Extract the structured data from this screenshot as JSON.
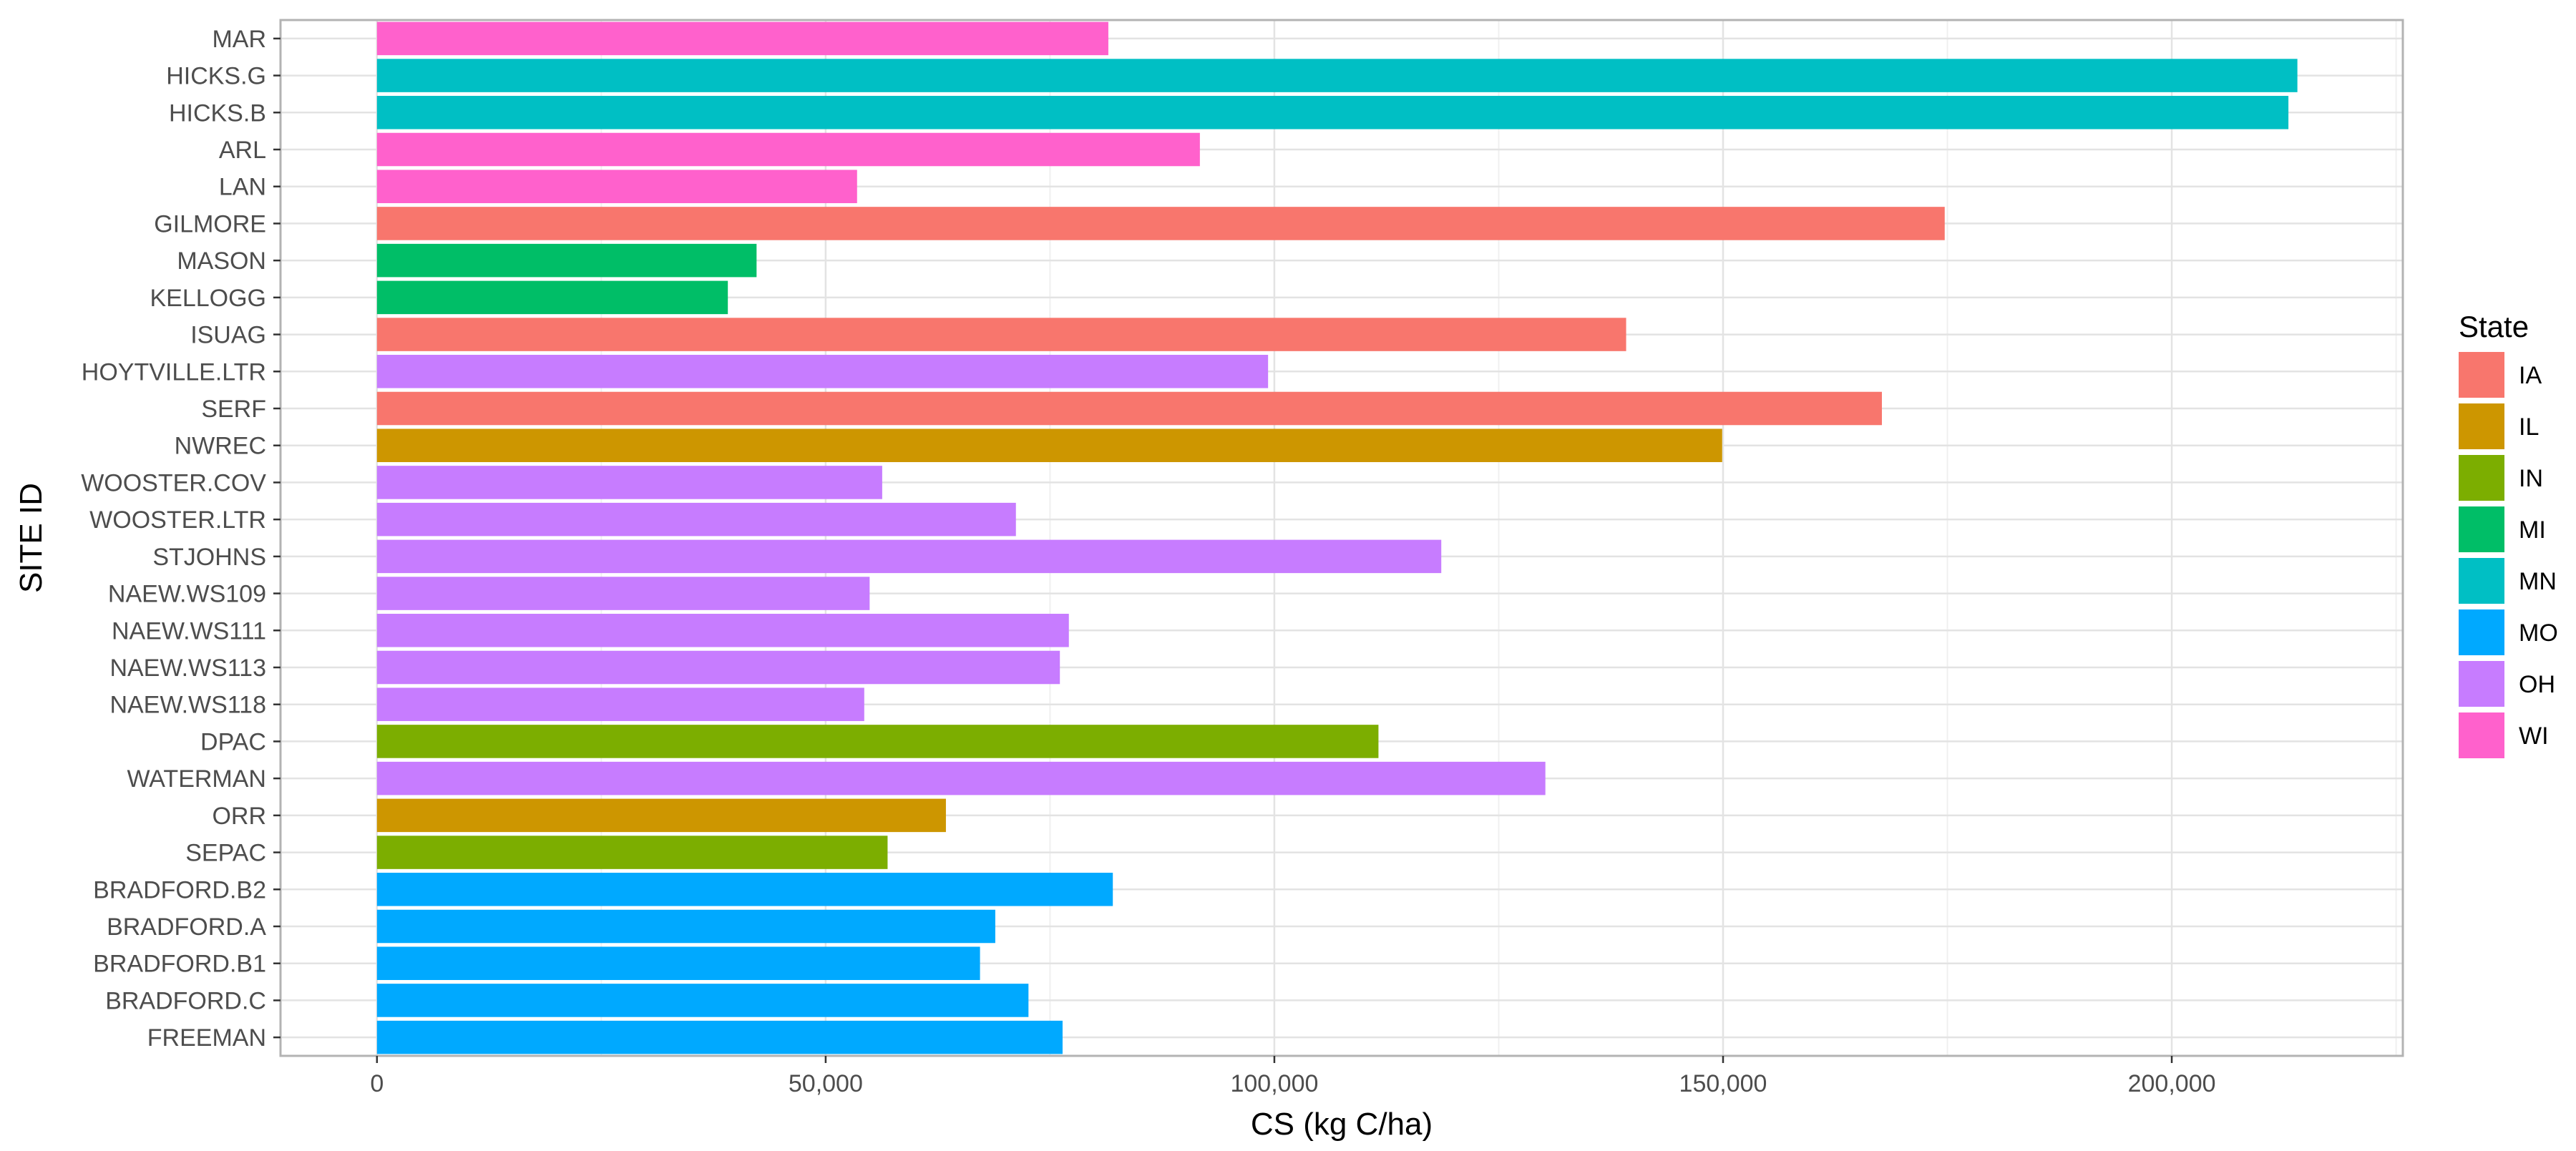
{
  "chart_data": {
    "type": "bar",
    "orientation": "horizontal",
    "xlabel": "CS (kg C/ha)",
    "ylabel": "SITE ID",
    "xlim": [
      -10750,
      225750
    ],
    "x_ticks": [
      0,
      50000,
      100000,
      150000,
      200000
    ],
    "x_tick_labels": [
      "0",
      "50,000",
      "100,000",
      "150,000",
      "200,000"
    ],
    "grid": true,
    "legend": {
      "title": "State",
      "placement": "right",
      "entries": [
        {
          "label": "IA",
          "color": "#F8766D"
        },
        {
          "label": "IL",
          "color": "#CD9600"
        },
        {
          "label": "IN",
          "color": "#7CAE00"
        },
        {
          "label": "MI",
          "color": "#00BE67"
        },
        {
          "label": "MN",
          "color": "#00BFC4"
        },
        {
          "label": "MO",
          "color": "#00A9FF"
        },
        {
          "label": "OH",
          "color": "#C77CFF"
        },
        {
          "label": "WI",
          "color": "#FF61CC"
        }
      ]
    },
    "bars": [
      {
        "site": "MAR",
        "state": "WI",
        "value": 81500
      },
      {
        "site": "HICKS.G",
        "state": "MN",
        "value": 214000
      },
      {
        "site": "HICKS.B",
        "state": "MN",
        "value": 213000
      },
      {
        "site": "ARL",
        "state": "WI",
        "value": 91700
      },
      {
        "site": "LAN",
        "state": "WI",
        "value": 53500
      },
      {
        "site": "GILMORE",
        "state": "IA",
        "value": 174700
      },
      {
        "site": "MASON",
        "state": "MI",
        "value": 42300
      },
      {
        "site": "KELLOGG",
        "state": "MI",
        "value": 39100
      },
      {
        "site": "ISUAG",
        "state": "IA",
        "value": 139200
      },
      {
        "site": "HOYTVILLE.LTR",
        "state": "OH",
        "value": 99300
      },
      {
        "site": "SERF",
        "state": "IA",
        "value": 167700
      },
      {
        "site": "NWREC",
        "state": "IL",
        "value": 149900
      },
      {
        "site": "WOOSTER.COV",
        "state": "OH",
        "value": 56300
      },
      {
        "site": "WOOSTER.LTR",
        "state": "OH",
        "value": 71200
      },
      {
        "site": "STJOHNS",
        "state": "OH",
        "value": 118600
      },
      {
        "site": "NAEW.WS109",
        "state": "OH",
        "value": 54900
      },
      {
        "site": "NAEW.WS111",
        "state": "OH",
        "value": 77100
      },
      {
        "site": "NAEW.WS113",
        "state": "OH",
        "value": 76100
      },
      {
        "site": "NAEW.WS118",
        "state": "OH",
        "value": 54300
      },
      {
        "site": "DPAC",
        "state": "IN",
        "value": 111600
      },
      {
        "site": "WATERMAN",
        "state": "OH",
        "value": 130200
      },
      {
        "site": "ORR",
        "state": "IL",
        "value": 63400
      },
      {
        "site": "SEPAC",
        "state": "IN",
        "value": 56900
      },
      {
        "site": "BRADFORD.B2",
        "state": "MO",
        "value": 82000
      },
      {
        "site": "BRADFORD.A",
        "state": "MO",
        "value": 68900
      },
      {
        "site": "BRADFORD.B1",
        "state": "MO",
        "value": 67200
      },
      {
        "site": "BRADFORD.C",
        "state": "MO",
        "value": 72600
      },
      {
        "site": "FREEMAN",
        "state": "MO",
        "value": 76400
      }
    ]
  }
}
